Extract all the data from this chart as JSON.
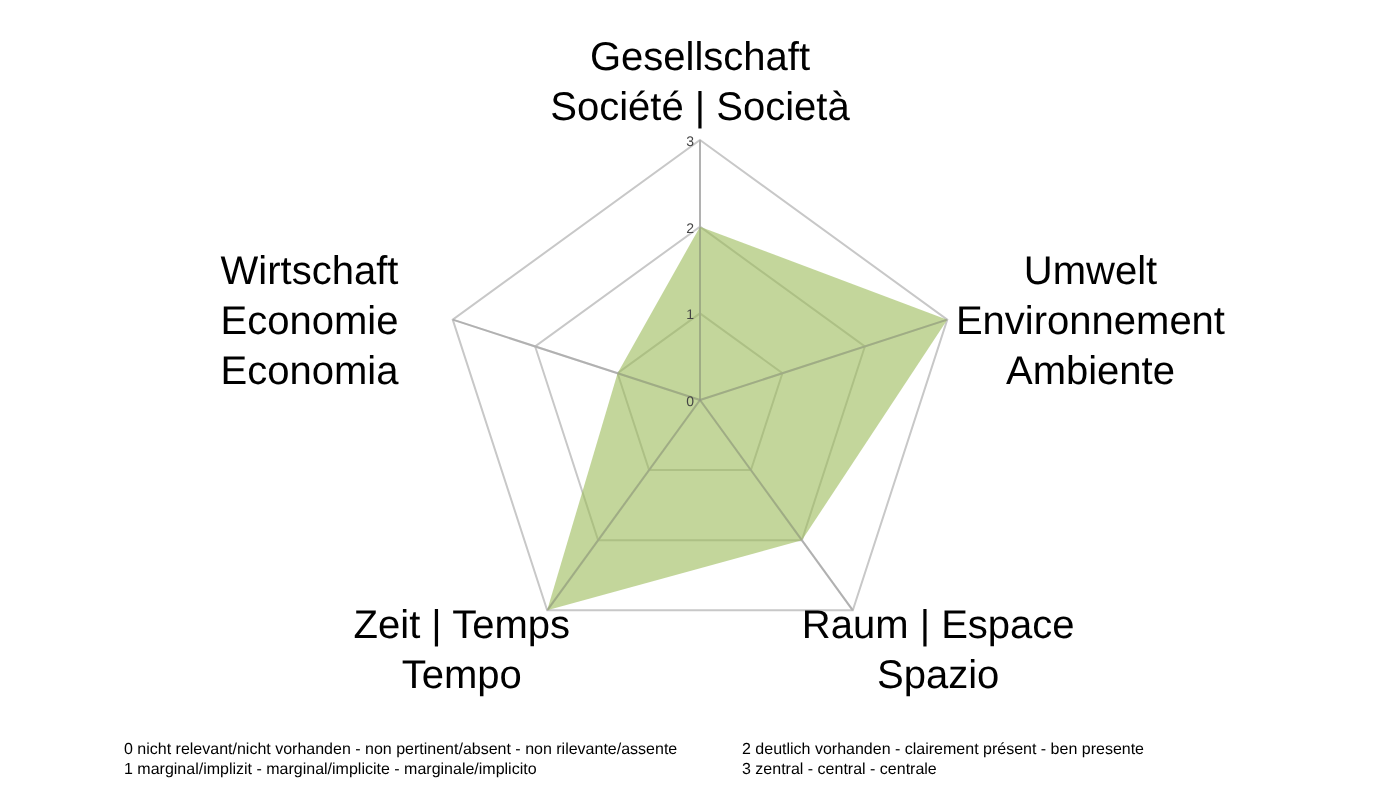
{
  "chart_data": {
    "type": "radar",
    "categories": [
      "Gesellschaft\nSociété | Società",
      "Umwelt\nEnvironnement\nAmbiente",
      "Raum | Espace\nSpazio",
      "Zeit | Temps\nTempo",
      "Wirtschaft\nEconomie\nEconomia"
    ],
    "series": [
      {
        "color": "#9bbb59",
        "values": [
          2,
          3,
          2,
          3,
          1
        ]
      }
    ],
    "ylim": [
      0,
      3
    ],
    "yticks": [
      0,
      1,
      2,
      3
    ],
    "grid": true,
    "annotations": [
      "0 nicht relevant/nicht  vorhanden  - non pertinent/absent - non rilevante/assente",
      "1 marginal/implizit - marginal/implicite - marginale/implicito",
      "2 deutlich vorhanden  - clairement présent - ben presente",
      "3 zentral - central - centrale"
    ]
  }
}
